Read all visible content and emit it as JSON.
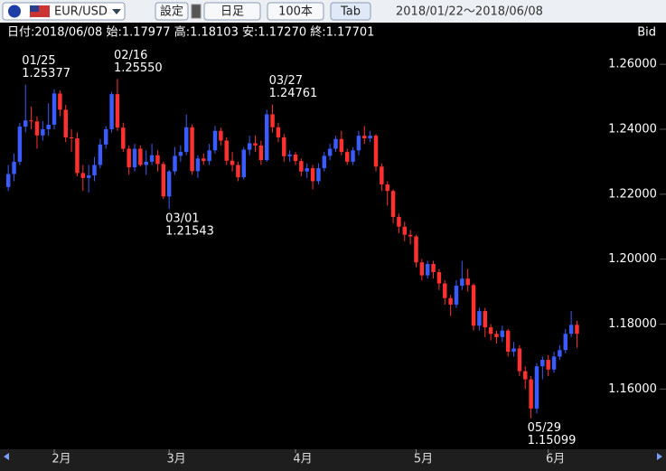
{
  "toolbar": {
    "pair": "EUR/USD",
    "buttons": [
      "設定",
      "日足",
      "100本",
      "Tab"
    ],
    "range": "2018/01/22～2018/06/08"
  },
  "chart_data": {
    "type": "candlestick",
    "info": "日付:2018/06/08 始:1.17977 高:1.18103 安:1.17270 終:1.17701",
    "price_label": "Bid",
    "up_color": "#3a5cff",
    "down_color": "#ff3030",
    "xlim": [
      -0.5,
      100.5
    ],
    "xticks": [
      {
        "value": 8,
        "label": "2月"
      },
      {
        "value": 28,
        "label": "3月"
      },
      {
        "value": 50,
        "label": "4月"
      },
      {
        "value": 71,
        "label": "5月"
      },
      {
        "value": 94,
        "label": "6月"
      }
    ],
    "ylim": [
      1.142,
      1.272
    ],
    "yticks": [
      {
        "value": 1.16,
        "label": "1.16000"
      },
      {
        "value": 1.18,
        "label": "1.18000"
      },
      {
        "value": 1.2,
        "label": "1.20000"
      },
      {
        "value": 1.22,
        "label": "1.22000"
      },
      {
        "value": 1.24,
        "label": "1.24000"
      },
      {
        "value": 1.26,
        "label": "1.26000"
      }
    ],
    "grid": false,
    "annotations": [
      {
        "label": "01/25",
        "value_label": "1.25377",
        "x": 3,
        "value": 1.25377,
        "position": "above"
      },
      {
        "label": "02/16",
        "value_label": "1.25550",
        "x": 19,
        "value": 1.2555,
        "position": "above"
      },
      {
        "label": "03/01",
        "value_label": "1.21543",
        "x": 28,
        "value": 1.21543,
        "position": "below"
      },
      {
        "label": "03/27",
        "value_label": "1.24761",
        "x": 46,
        "value": 1.24761,
        "position": "above"
      },
      {
        "label": "05/29",
        "value_label": "1.15099",
        "x": 91,
        "value": 1.15099,
        "position": "below"
      }
    ],
    "ohlc": [
      [
        1.2222,
        1.229,
        1.221,
        1.2262
      ],
      [
        1.2262,
        1.2325,
        1.224,
        1.23
      ],
      [
        1.23,
        1.242,
        1.229,
        1.2408
      ],
      [
        1.2408,
        1.25377,
        1.239,
        1.2427
      ],
      [
        1.2427,
        1.247,
        1.24,
        1.2424
      ],
      [
        1.2424,
        1.244,
        1.234,
        1.2381
      ],
      [
        1.2381,
        1.2425,
        1.2365,
        1.24
      ],
      [
        1.24,
        1.248,
        1.238,
        1.2414
      ],
      [
        1.2414,
        1.2523,
        1.24,
        1.251
      ],
      [
        1.251,
        1.252,
        1.244,
        1.246
      ],
      [
        1.246,
        1.2475,
        1.236,
        1.2375
      ],
      [
        1.2375,
        1.24,
        1.233,
        1.2372
      ],
      [
        1.2372,
        1.239,
        1.2255,
        1.2265
      ],
      [
        1.2265,
        1.229,
        1.221,
        1.225
      ],
      [
        1.225,
        1.229,
        1.2205,
        1.2258
      ],
      [
        1.2258,
        1.2315,
        1.224,
        1.229
      ],
      [
        1.229,
        1.237,
        1.228,
        1.2353
      ],
      [
        1.2353,
        1.241,
        1.234,
        1.24
      ],
      [
        1.24,
        1.2515,
        1.239,
        1.2508
      ],
      [
        1.2508,
        1.2555,
        1.2395,
        1.2405
      ],
      [
        1.2405,
        1.242,
        1.233,
        1.234
      ],
      [
        1.234,
        1.235,
        1.226,
        1.2283
      ],
      [
        1.2283,
        1.2355,
        1.227,
        1.234
      ],
      [
        1.234,
        1.235,
        1.2285,
        1.229
      ],
      [
        1.229,
        1.2335,
        1.226,
        1.23
      ],
      [
        1.23,
        1.2355,
        1.229,
        1.232
      ],
      [
        1.232,
        1.2335,
        1.227,
        1.2293
      ],
      [
        1.2293,
        1.23,
        1.2185,
        1.2193
      ],
      [
        1.2193,
        1.2275,
        1.21543,
        1.227
      ],
      [
        1.227,
        1.2345,
        1.226,
        1.2318
      ],
      [
        1.2318,
        1.235,
        1.23,
        1.233
      ],
      [
        1.233,
        1.2445,
        1.232,
        1.2406
      ],
      [
        1.2406,
        1.2415,
        1.226,
        1.2271
      ],
      [
        1.2271,
        1.232,
        1.225,
        1.231
      ],
      [
        1.231,
        1.2325,
        1.229,
        1.2302
      ],
      [
        1.2302,
        1.2355,
        1.229,
        1.2335
      ],
      [
        1.2335,
        1.241,
        1.2325,
        1.2395
      ],
      [
        1.2395,
        1.2405,
        1.235,
        1.2365
      ],
      [
        1.2365,
        1.2375,
        1.229,
        1.2303
      ],
      [
        1.2303,
        1.233,
        1.227,
        1.229
      ],
      [
        1.229,
        1.23,
        1.224,
        1.2252
      ],
      [
        1.2252,
        1.2345,
        1.2245,
        1.2337
      ],
      [
        1.2337,
        1.238,
        1.232,
        1.2357
      ],
      [
        1.2357,
        1.238,
        1.233,
        1.235
      ],
      [
        1.235,
        1.2365,
        1.229,
        1.2305
      ],
      [
        1.2305,
        1.246,
        1.23,
        1.2446
      ],
      [
        1.2446,
        1.24761,
        1.239,
        1.2406
      ],
      [
        1.2406,
        1.242,
        1.236,
        1.2375
      ],
      [
        1.2375,
        1.2385,
        1.23,
        1.2317
      ],
      [
        1.2317,
        1.2335,
        1.23,
        1.2322
      ],
      [
        1.2322,
        1.233,
        1.229,
        1.2302
      ],
      [
        1.2302,
        1.231,
        1.2255,
        1.227
      ],
      [
        1.227,
        1.2295,
        1.225,
        1.228
      ],
      [
        1.228,
        1.229,
        1.2215,
        1.224
      ],
      [
        1.224,
        1.2295,
        1.223,
        1.228
      ],
      [
        1.228,
        1.233,
        1.227,
        1.2318
      ],
      [
        1.2318,
        1.2355,
        1.2305,
        1.234
      ],
      [
        1.234,
        1.238,
        1.233,
        1.237
      ],
      [
        1.237,
        1.2395,
        1.232,
        1.233
      ],
      [
        1.233,
        1.234,
        1.229,
        1.23
      ],
      [
        1.23,
        1.2345,
        1.229,
        1.2335
      ],
      [
        1.2335,
        1.2395,
        1.232,
        1.238
      ],
      [
        1.238,
        1.241,
        1.2355,
        1.2372
      ],
      [
        1.2372,
        1.2395,
        1.236,
        1.238
      ],
      [
        1.238,
        1.2385,
        1.227,
        1.2285
      ],
      [
        1.2285,
        1.2295,
        1.221,
        1.223
      ],
      [
        1.223,
        1.224,
        1.2165,
        1.221
      ],
      [
        1.221,
        1.2215,
        1.211,
        1.213
      ],
      [
        1.213,
        1.214,
        1.208,
        1.21
      ],
      [
        1.21,
        1.2115,
        1.2055,
        1.2075
      ],
      [
        1.2075,
        1.209,
        1.2045,
        1.207
      ],
      [
        1.207,
        1.2075,
        1.1975,
        1.199
      ],
      [
        1.199,
        1.2,
        1.1935,
        1.195
      ],
      [
        1.195,
        1.1995,
        1.194,
        1.1985
      ],
      [
        1.1985,
        1.1995,
        1.194,
        1.196
      ],
      [
        1.196,
        1.197,
        1.1905,
        1.1925
      ],
      [
        1.1925,
        1.1935,
        1.186,
        1.188
      ],
      [
        1.188,
        1.189,
        1.1825,
        1.186
      ],
      [
        1.186,
        1.1935,
        1.185,
        1.1918
      ],
      [
        1.1918,
        1.1995,
        1.1905,
        1.194
      ],
      [
        1.194,
        1.197,
        1.19,
        1.192
      ],
      [
        1.192,
        1.1925,
        1.178,
        1.1795
      ],
      [
        1.1795,
        1.185,
        1.178,
        1.184
      ],
      [
        1.184,
        1.185,
        1.176,
        1.179
      ],
      [
        1.179,
        1.18,
        1.175,
        1.177
      ],
      [
        1.177,
        1.178,
        1.174,
        1.176
      ],
      [
        1.176,
        1.1795,
        1.1745,
        1.178
      ],
      [
        1.178,
        1.1785,
        1.17,
        1.1715
      ],
      [
        1.1715,
        1.1745,
        1.17,
        1.1725
      ],
      [
        1.1725,
        1.1735,
        1.164,
        1.1655
      ],
      [
        1.1655,
        1.167,
        1.16,
        1.163
      ],
      [
        1.163,
        1.164,
        1.15099,
        1.154
      ],
      [
        1.154,
        1.168,
        1.1525,
        1.167
      ],
      [
        1.167,
        1.17,
        1.163,
        1.169
      ],
      [
        1.169,
        1.1705,
        1.164,
        1.166
      ],
      [
        1.166,
        1.1715,
        1.165,
        1.17
      ],
      [
        1.17,
        1.1735,
        1.169,
        1.172
      ],
      [
        1.172,
        1.1785,
        1.171,
        1.177
      ],
      [
        1.177,
        1.184,
        1.176,
        1.17977
      ],
      [
        1.17977,
        1.18103,
        1.1727,
        1.17701
      ]
    ]
  }
}
